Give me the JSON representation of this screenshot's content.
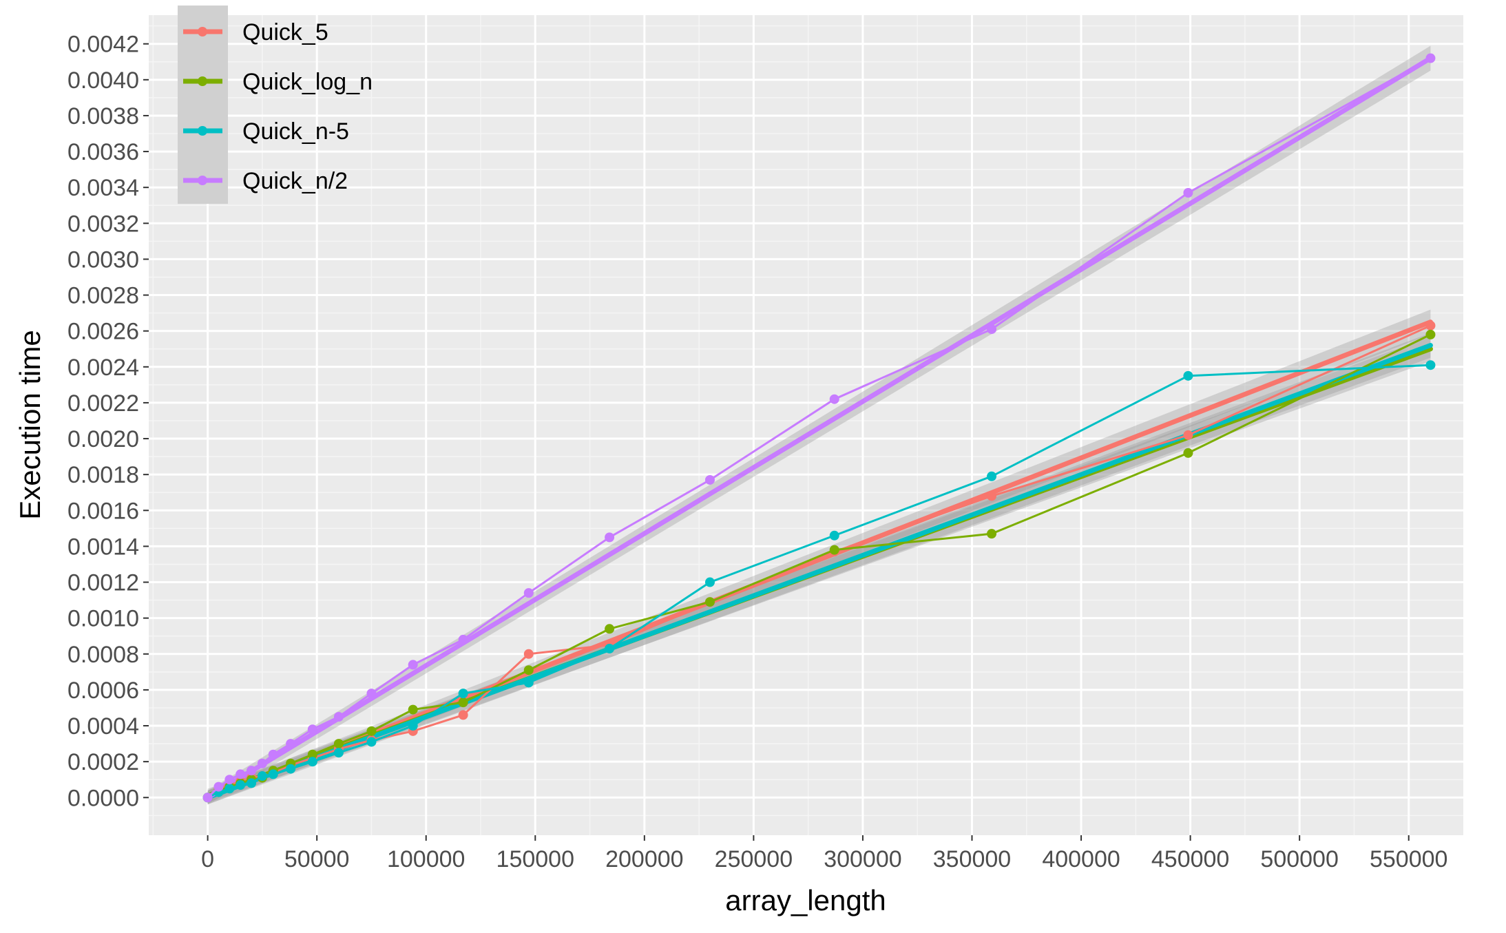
{
  "chart_data": {
    "type": "line",
    "title": "",
    "xlabel": "array_length",
    "ylabel": "Execution time",
    "xlim": [
      -27000,
      575000
    ],
    "ylim": [
      -0.00021,
      0.00436
    ],
    "x_ticks": [
      0,
      50000,
      100000,
      150000,
      200000,
      250000,
      300000,
      350000,
      400000,
      450000,
      500000,
      550000
    ],
    "x_tick_labels": [
      "0",
      "50000",
      "100000",
      "150000",
      "200000",
      "250000",
      "300000",
      "350000",
      "400000",
      "450000",
      "500000",
      "550000"
    ],
    "y_ticks": [
      0,
      0.0002,
      0.0004,
      0.0006,
      0.0008,
      0.001,
      0.0012,
      0.0014,
      0.0016,
      0.0018,
      0.002,
      0.0022,
      0.0024,
      0.0026,
      0.0028,
      0.003,
      0.0032,
      0.0034,
      0.0036,
      0.0038,
      0.004,
      0.0042
    ],
    "y_tick_labels": [
      "0.0000",
      "0.0002",
      "0.0004",
      "0.0006",
      "0.0008",
      "0.0010",
      "0.0012",
      "0.0014",
      "0.0016",
      "0.0018",
      "0.0020",
      "0.0022",
      "0.0024",
      "0.0026",
      "0.0028",
      "0.0030",
      "0.0032",
      "0.0034",
      "0.0036",
      "0.0038",
      "0.0040",
      "0.0042"
    ],
    "grid": true,
    "background": "#ebebeb",
    "legend_position": "top-left",
    "smooth_overlay": true,
    "series": [
      {
        "name": "Quick_5",
        "color": "#F8766D",
        "x": [
          0,
          5000,
          10000,
          15000,
          20000,
          25000,
          30000,
          38000,
          48000,
          60000,
          75000,
          94000,
          117000,
          147000,
          184000,
          230000,
          287000,
          359000,
          449000,
          560000
        ],
        "y": [
          0.0,
          5e-05,
          7e-05,
          9e-05,
          0.00011,
          0.00012,
          0.00014,
          0.00018,
          0.00022,
          0.00027,
          0.00032,
          0.00037,
          0.00046,
          0.0008,
          0.00085,
          0.00109,
          0.00137,
          0.00168,
          0.00202,
          0.00263
        ],
        "fit": [
          0.0,
          0.00265
        ]
      },
      {
        "name": "Quick_log_n",
        "color": "#7CAE00",
        "x": [
          0,
          5000,
          10000,
          15000,
          20000,
          25000,
          30000,
          38000,
          48000,
          60000,
          75000,
          94000,
          117000,
          147000,
          184000,
          230000,
          287000,
          359000,
          449000,
          560000
        ],
        "y": [
          0.0,
          4e-05,
          6e-05,
          8e-05,
          0.0001,
          0.00011,
          0.00015,
          0.00019,
          0.00024,
          0.0003,
          0.00037,
          0.00049,
          0.00053,
          0.00071,
          0.00094,
          0.00109,
          0.00138,
          0.00147,
          0.00192,
          0.00258
        ],
        "fit": [
          1e-05,
          0.0025
        ]
      },
      {
        "name": "Quick_n-5",
        "color": "#00BFC4",
        "x": [
          0,
          5000,
          10000,
          15000,
          20000,
          25000,
          30000,
          38000,
          48000,
          60000,
          75000,
          94000,
          117000,
          147000,
          184000,
          230000,
          287000,
          359000,
          449000,
          560000
        ],
        "y": [
          0.0,
          3e-05,
          5e-05,
          7e-05,
          8e-05,
          0.00012,
          0.00013,
          0.00016,
          0.0002,
          0.00025,
          0.00031,
          0.0004,
          0.00058,
          0.00064,
          0.00083,
          0.0012,
          0.00146,
          0.00179,
          0.00235,
          0.00241
        ],
        "fit": [
          0.0,
          0.00252
        ]
      },
      {
        "name": "Quick_n/2",
        "color": "#C77CFF",
        "x": [
          0,
          5000,
          10000,
          15000,
          20000,
          25000,
          30000,
          38000,
          48000,
          60000,
          75000,
          94000,
          117000,
          147000,
          184000,
          230000,
          287000,
          359000,
          449000,
          560000
        ],
        "y": [
          0.0,
          6e-05,
          0.0001,
          0.00013,
          0.00015,
          0.00019,
          0.00024,
          0.0003,
          0.00038,
          0.00045,
          0.00058,
          0.00074,
          0.00088,
          0.00114,
          0.00145,
          0.00177,
          0.00222,
          0.00261,
          0.00337,
          0.00412
        ],
        "fit": [
          0.0,
          0.00412
        ]
      }
    ]
  }
}
